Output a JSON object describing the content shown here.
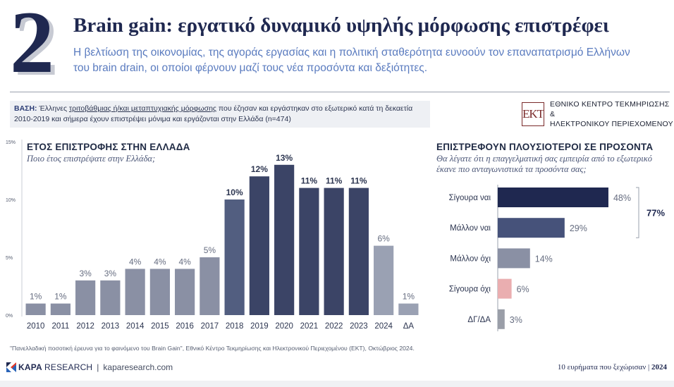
{
  "header": {
    "number": "2",
    "title": "Brain gain: εργατικό δυναμικό υψηλής μόρφωσης επιστρέφει",
    "subtitle": "Η βελτίωση της οικονομίας, της αγοράς εργασίας και η πολιτική σταθερότητα ευνοούν τον επαναπατρισμό Ελλήνων του brain drain, οι οποίοι φέρνουν μαζί τους νέα προσόντα και δεξιότητες."
  },
  "base": {
    "label": "ΒΑΣΗ:",
    "text_1": " Έλληνες ",
    "text_underlined": "τριτοβάθμιας ή/και μεταπτυχιακής μόρφωσης",
    "text_2": " που έζησαν και εργάστηκαν στο εξωτερικό κατά τη δεκαετία 2010-2019 και σήμερα έχουν επιστρέψει μόνιμα και εργάζονται στην Ελλάδα (n=474)"
  },
  "ekt": {
    "logo_text": "EKT",
    "line1": "ΕΘΝΙΚΟ ΚΕΝΤΡΟ ΤΕΚΜΗΡΙΩΣΗΣ &",
    "line2": "ΗΛΕΚΤΡΟΝΙΚΟΥ ΠΕΡΙΕΧΟΜΕΝΟΥ"
  },
  "chart_data": [
    {
      "type": "bar",
      "title": "ΕΤΟΣ ΕΠΙΣΤΡΟΦΗΣ ΣΤΗΝ ΕΛΛΑΔΑ",
      "subtitle": "Ποιο έτος επιστρέψατε στην Ελλάδα;",
      "categories": [
        "2010",
        "2011",
        "2012",
        "2013",
        "2014",
        "2015",
        "2016",
        "2017",
        "2018",
        "2019",
        "2020",
        "2021",
        "2022",
        "2023",
        "2024",
        "ΔΑ"
      ],
      "values": [
        1,
        1,
        3,
        3,
        4,
        4,
        4,
        5,
        10,
        12,
        13,
        11,
        11,
        11,
        6,
        1
      ],
      "value_labels": [
        "1%",
        "1%",
        "3%",
        "3%",
        "4%",
        "4%",
        "4%",
        "5%",
        "10%",
        "12%",
        "13%",
        "11%",
        "11%",
        "11%",
        "6%",
        "1%"
      ],
      "colors": [
        "#8a90a4",
        "#8a90a4",
        "#8a90a4",
        "#8a90a4",
        "#8a90a4",
        "#8a90a4",
        "#8a90a4",
        "#8a90a4",
        "#525e80",
        "#3b4466",
        "#3b4466",
        "#3b4466",
        "#3b4466",
        "#3b4466",
        "#9aa1b3",
        "#9aa1b3"
      ],
      "yticks": [
        "0%",
        "5%",
        "10%",
        "15%"
      ],
      "ylim": [
        0,
        15
      ],
      "grid": false
    },
    {
      "type": "bar",
      "orientation": "horizontal",
      "title": "ΕΠΙΣΤΡΕΦΟΥΝ ΠΛΟΥΣΙΟΤΕΡΟΙ ΣΕ ΠΡΟΣΟΝΤΑ",
      "subtitle": "Θα λέγατε ότι η επαγγελματική σας εμπειρία από το εξωτερικό έκανε πιο ανταγωνιστικά τα προσόντα σας;",
      "categories": [
        "Σίγουρα ναι",
        "Μάλλον ναι",
        "Μάλλον όχι",
        "Σίγουρα όχι",
        "ΔΓ/ΔΑ"
      ],
      "values": [
        48,
        29,
        14,
        6,
        3
      ],
      "value_labels": [
        "48%",
        "29%",
        "14%",
        "6%",
        "3%"
      ],
      "colors": [
        "#1f2850",
        "#46527a",
        "#8a90a4",
        "#eaaeb0",
        "#9a9ea8"
      ],
      "annotation": {
        "label": "77%",
        "spans": [
          "Σίγουρα ναι",
          "Μάλλον ναι"
        ]
      }
    }
  ],
  "footnote": "\"Πανελλαδική ποσοτική έρευνα για το φαινόμενο του Brain Gain\", Εθνικό Κέντρο Τεκμηρίωσης και Ηλεκτρονικού Περιεχομένου (ΕΚΤ), Οκτώβριος 2024.",
  "footer": {
    "brand_bold": "KAPA",
    "brand_rest": "RESEARCH",
    "separator": "|",
    "url": "kaparesearch.com",
    "right_text": "10 ευρήματα που ξεχώρισαν",
    "right_sep": " | ",
    "right_year": "2024"
  }
}
